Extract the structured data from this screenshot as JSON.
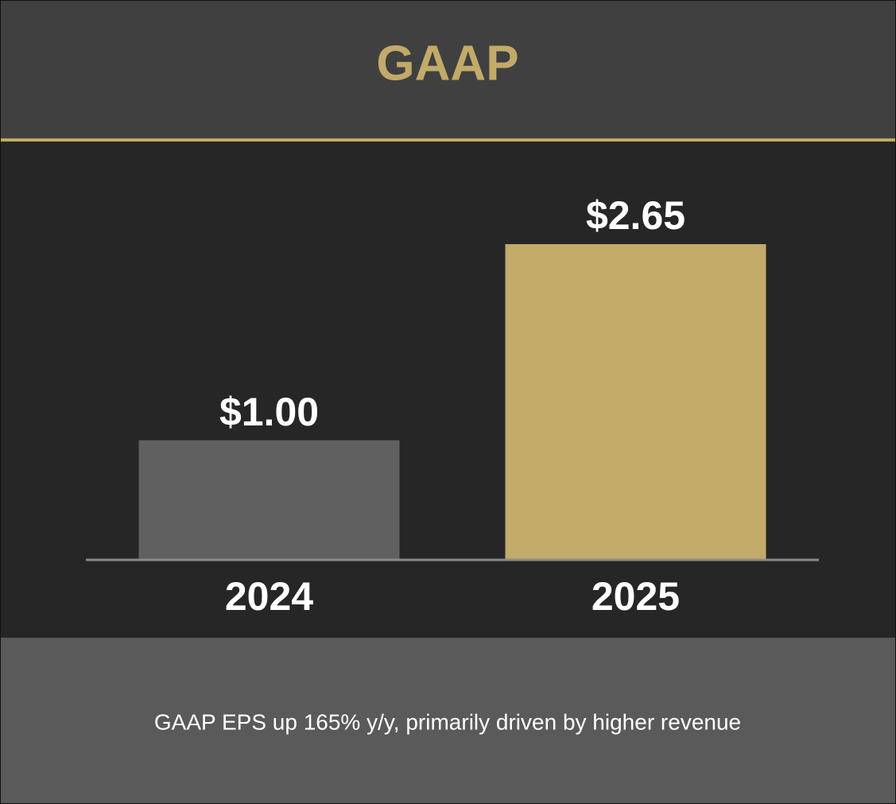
{
  "chart_data": {
    "type": "bar",
    "title": "GAAP",
    "categories": [
      "2024",
      "2025"
    ],
    "values": [
      1.0,
      2.65
    ],
    "value_labels": [
      "$1.00",
      "$2.65"
    ],
    "colors": [
      "#606060",
      "#c2aa69"
    ],
    "annotation": "GAAP EPS up 165% y/y, primarily driven by higher revenue"
  }
}
